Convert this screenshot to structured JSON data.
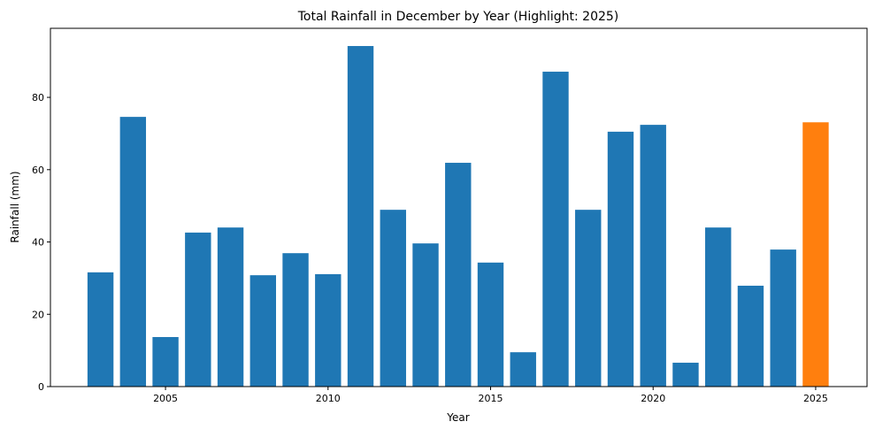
{
  "chart_data": {
    "type": "bar",
    "title": "Total Rainfall in December by Year (Highlight: 2025)",
    "xlabel": "Year",
    "ylabel": "Rainfall (mm)",
    "categories": [
      2003,
      2004,
      2005,
      2006,
      2007,
      2008,
      2009,
      2010,
      2011,
      2012,
      2013,
      2014,
      2015,
      2016,
      2017,
      2018,
      2019,
      2020,
      2021,
      2022,
      2023,
      2024,
      2025
    ],
    "values": [
      31.6,
      74.6,
      13.7,
      42.6,
      44.0,
      30.8,
      36.9,
      31.1,
      94.2,
      48.9,
      39.6,
      61.9,
      34.3,
      9.5,
      87.1,
      48.9,
      70.5,
      72.4,
      6.6,
      44.0,
      27.9,
      37.9,
      73.1
    ],
    "highlight": 2025,
    "colors": {
      "default": "#1f77b4",
      "highlight": "#ff7f0e"
    },
    "xlim": [
      2001.46,
      2026.58
    ],
    "ylim": [
      0,
      99.1
    ],
    "xticks": [
      2005,
      2010,
      2015,
      2020,
      2025
    ],
    "yticks": [
      0,
      20,
      40,
      60,
      80
    ],
    "grid": false,
    "legend": "none"
  }
}
